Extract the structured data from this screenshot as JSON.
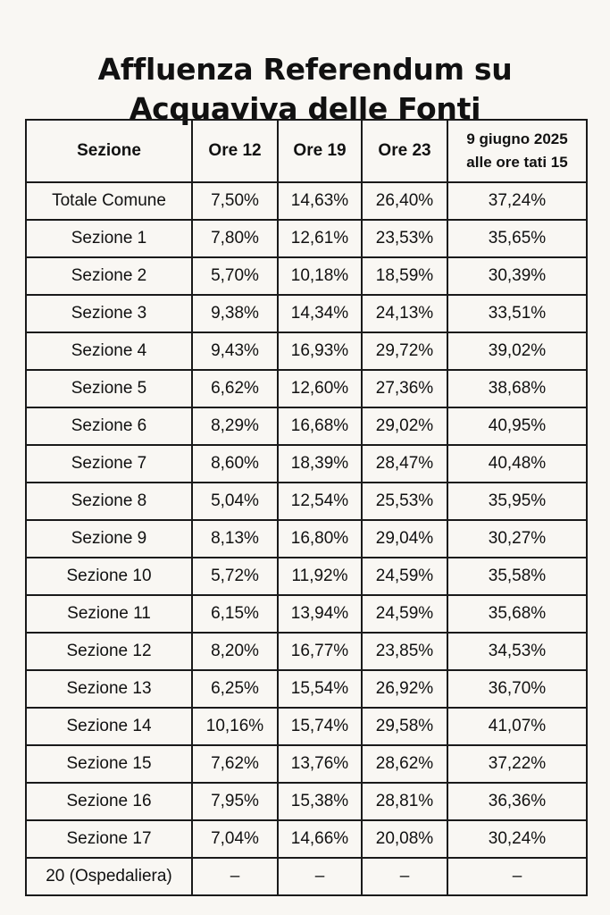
{
  "title": {
    "line1": "Affluenza Referendum su",
    "line2": "Acquaviva delle Fonti"
  },
  "table": {
    "headers": {
      "col0": "Sezione",
      "col1": "Ore 12",
      "col2": "Ore 19",
      "col3": "Ore 23",
      "col4_line1": "9 giugno 2025",
      "col4_line2": "alle ore tati 15"
    },
    "rows": [
      [
        "Totale Comune",
        "7,50%",
        "14,63%",
        "26,40%",
        "37,24%"
      ],
      [
        "Sezione 1",
        "7,80%",
        "12,61%",
        "23,53%",
        "35,65%"
      ],
      [
        "Sezione 2",
        "5,70%",
        "10,18%",
        "18,59%",
        "30,39%"
      ],
      [
        "Sezione 3",
        "9,38%",
        "14,34%",
        "24,13%",
        "33,51%"
      ],
      [
        "Sezione 4",
        "9,43%",
        "16,93%",
        "29,72%",
        "39,02%"
      ],
      [
        "Sezione 5",
        "6,62%",
        "12,60%",
        "27,36%",
        "38,68%"
      ],
      [
        "Sezione 6",
        "8,29%",
        "16,68%",
        "29,02%",
        "40,95%"
      ],
      [
        "Sezione 7",
        "8,60%",
        "18,39%",
        "28,47%",
        "40,48%"
      ],
      [
        "Sezione 8",
        "5,04%",
        "12,54%",
        "25,53%",
        "35,95%"
      ],
      [
        "Sezione 9",
        "8,13%",
        "16,80%",
        "29,04%",
        "30,27%"
      ],
      [
        "Sezione 10",
        "5,72%",
        "11,92%",
        "24,59%",
        "35,58%"
      ],
      [
        "Sezione 11",
        "6,15%",
        "13,94%",
        "24,59%",
        "35,68%"
      ],
      [
        "Sezione 12",
        "8,20%",
        "16,77%",
        "23,85%",
        "34,53%"
      ],
      [
        "Sezione 13",
        "6,25%",
        "15,54%",
        "26,92%",
        "36,70%"
      ],
      [
        "Sezione 14",
        "10,16%",
        "15,74%",
        "29,58%",
        "41,07%"
      ],
      [
        "Sezione 15",
        "7,62%",
        "13,76%",
        "28,62%",
        "37,22%"
      ],
      [
        "Sezione 16",
        "7,95%",
        "15,38%",
        "28,81%",
        "36,36%"
      ],
      [
        "Sezione 17",
        "7,04%",
        "14,66%",
        "20,08%",
        "30,24%"
      ],
      [
        "20 (Ospedaliera)",
        "–",
        "–",
        "–",
        "–"
      ]
    ]
  }
}
